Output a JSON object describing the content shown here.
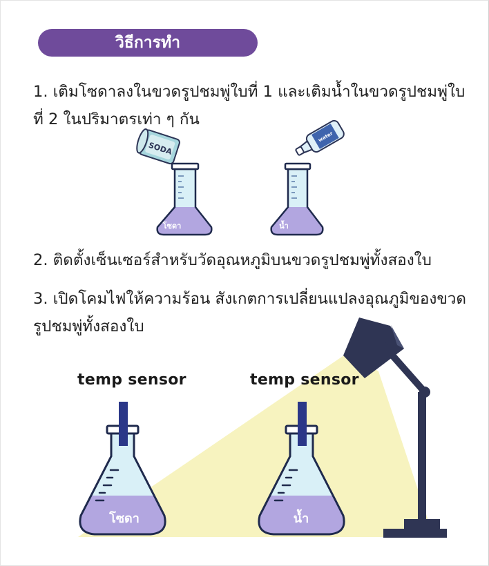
{
  "header": {
    "title": "วิธีการทำ"
  },
  "steps": [
    {
      "text": "1. เติมโซดาลงในขวดรูปชมพู่ใบที่ 1 และเติมน้ำในขวดรูปชมพู่ใบที่ 2 ในปริมาตรเท่า ๆ กัน"
    },
    {
      "text": "2. ติดตั้งเซ็นเซอร์สำหรับวัดอุณหภูมิบนขวดรูปชมพู่ทั้งสองใบ"
    },
    {
      "text": "3. เปิดโคมไฟให้ความร้อน สังเกตการเปลี่ยนแปลงอุณภูมิของขวดรูปชมพู่ทั้งสองใบ"
    }
  ],
  "illustration_top": {
    "can_label": "SODA",
    "bottle_label": "water",
    "flask_left_label": "โซดา",
    "flask_right_label": "น้ำ"
  },
  "illustration_bottom": {
    "sensor_label_left": "temp sensor",
    "sensor_label_right": "temp sensor",
    "flask_left_label": "โซดา",
    "flask_right_label": "น้ำ"
  },
  "colors": {
    "pill": "#6f4b9b",
    "liquid": "#b2a6e0",
    "flask_glass": "#d9f0f7",
    "outline": "#1f2a4d",
    "sensor": "#2b3788",
    "lamp": "#2f3554",
    "light": "#f7f3bf"
  }
}
